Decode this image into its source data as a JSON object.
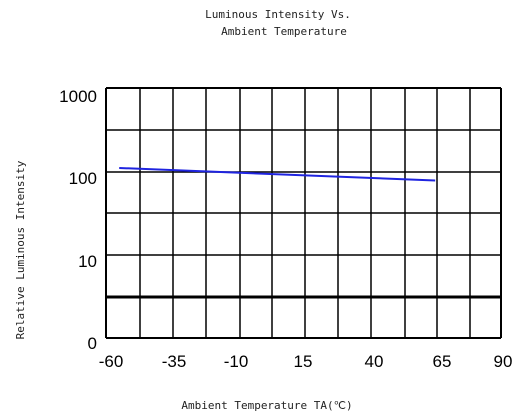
{
  "chart_data": {
    "type": "line",
    "title_lines": [
      "Luminous Intensity Vs.",
      "Ambient Temperature"
    ],
    "xlabel": "Ambient Temperature TA(℃)",
    "ylabel": "Relative Luminous Intensity",
    "x_ticks": [
      "-60",
      "-35",
      "-10",
      "15",
      "40",
      "65",
      "90"
    ],
    "y_ticks": [
      "1000",
      "100",
      "10",
      "0"
    ],
    "xlim": [
      -60,
      90
    ],
    "series": [
      {
        "x": [
          -55,
          65
        ],
        "y": [
          110,
          78
        ]
      }
    ],
    "grid": true,
    "colors": {
      "line": "#1f24e0",
      "grid": "#000000"
    }
  }
}
